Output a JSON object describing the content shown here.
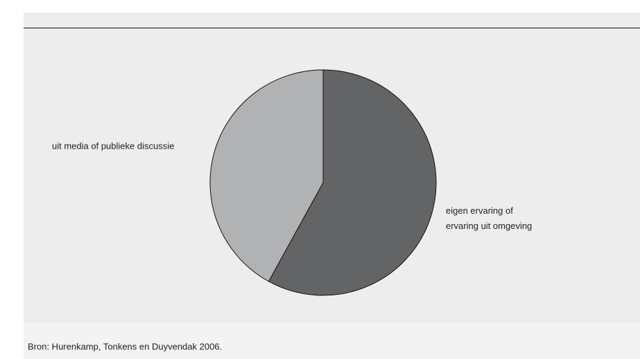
{
  "chart_data": {
    "type": "pie",
    "categories": [
      "eigen ervaring of\nervaring uit omgeving",
      "uit media of publieke discussie"
    ],
    "values": [
      58,
      42
    ],
    "colors": [
      "#636466",
      "#b1b2b4"
    ],
    "source": "Bron: Hurenkamp, Tonkens en Duyvendak 2006."
  }
}
